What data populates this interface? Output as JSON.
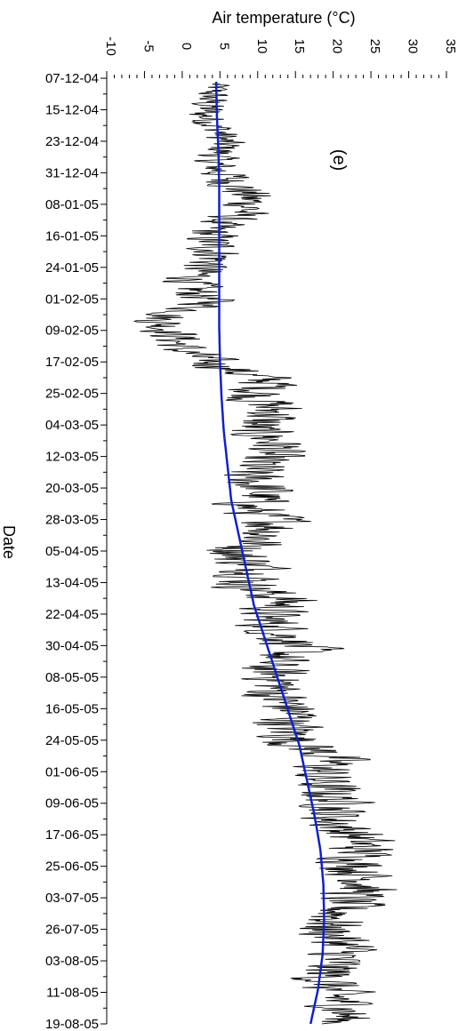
{
  "chart_data": {
    "type": "line",
    "orientation": "vertical-time-axis",
    "title": "",
    "panel_label": "(e)",
    "xlabel": "Air temperature (°C)",
    "ylabel": "Date",
    "x_ticks": [
      -10,
      -5,
      0,
      5,
      10,
      15,
      20,
      25,
      30,
      35
    ],
    "xlim": [
      -10,
      35
    ],
    "y_tick_labels": [
      "07-12-04",
      "15-12-04",
      "23-12-04",
      "31-12-04",
      "08-01-05",
      "16-01-05",
      "24-01-05",
      "01-02-05",
      "09-02-05",
      "17-02-05",
      "25-02-05",
      "04-03-05",
      "12-03-05",
      "20-03-05",
      "28-03-05",
      "05-04-05",
      "13-04-05",
      "22-04-05",
      "30-04-05",
      "08-05-05",
      "16-05-05",
      "24-05-05",
      "01-06-05",
      "09-06-05",
      "17-06-05",
      "25-06-05",
      "03-07-05",
      "26-07-05",
      "03-08-05",
      "11-08-05",
      "19-08-05"
    ],
    "grid": false,
    "series": [
      {
        "kind": "observed",
        "color": "#000000",
        "mean": [
          4.5,
          3.5,
          3.0,
          5.0,
          5.5,
          4.0,
          6.0,
          8.5,
          9.0,
          4.0,
          3.5,
          5.0,
          2.0,
          1.0,
          4.0,
          -3.0,
          -1.0,
          0.0,
          5.0,
          12.0,
          10.0,
          12.5,
          9.0,
          13.0,
          10.0,
          8.5,
          11.0,
          8.5,
          13.0,
          11.0,
          7.0,
          10.5,
          8.5,
          14.0,
          11.0,
          13.0,
          16.0,
          11.0,
          13.0,
          12.0,
          15.0,
          14.0,
          15.0,
          20.0,
          18.0,
          19.0,
          21.0,
          20.0,
          23.0,
          24.0,
          23.0,
          25.0,
          22.0,
          21.0,
          19.0,
          22.0,
          20.0,
          19.0,
          20.0,
          22.0,
          21.0
        ],
        "amp": [
          2,
          3,
          3,
          3,
          3,
          3,
          4,
          4,
          4,
          4,
          4,
          4,
          4,
          4,
          4,
          4,
          4,
          4,
          4,
          5,
          5,
          5,
          5,
          5,
          5,
          5,
          5,
          5,
          5,
          5,
          5,
          5,
          5,
          5,
          5,
          5,
          5,
          5,
          5,
          5,
          5,
          5,
          5,
          5,
          5,
          5,
          5,
          5,
          5,
          5,
          5,
          5,
          5,
          5,
          5,
          5,
          5,
          5,
          5,
          5,
          4
        ]
      },
      {
        "kind": "trend",
        "color": "#1020d0",
        "values": [
          4.5,
          4.6,
          4.8,
          4.9,
          4.9,
          4.9,
          4.9,
          4.9,
          5.0,
          5.2,
          5.5,
          6.0,
          6.5,
          7.5,
          8.5,
          9.5,
          11.0,
          12.5,
          14.0,
          15.5,
          16.5,
          17.5,
          18.3,
          18.7,
          18.8,
          18.6,
          18.0,
          17.0
        ]
      }
    ],
    "annotations": [
      "(e)"
    ]
  }
}
